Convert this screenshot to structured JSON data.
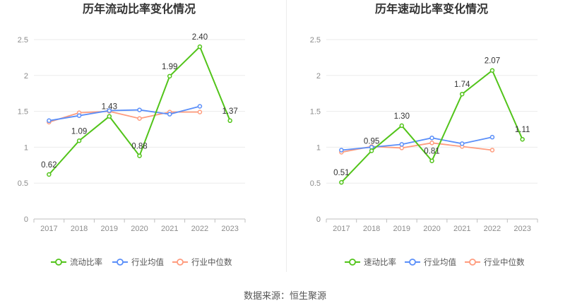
{
  "footer": "数据来源：恒生聚源",
  "chart_data": [
    {
      "type": "line",
      "title": "历年流动比率变化情况",
      "xlabel": "",
      "ylabel": "",
      "ylim": [
        0,
        2.5
      ],
      "yticks": [
        "0",
        "0.5",
        "1",
        "1.5",
        "2",
        "2.5"
      ],
      "categories": [
        "2017",
        "2018",
        "2019",
        "2020",
        "2021",
        "2022",
        "2023"
      ],
      "grid": true,
      "legend": "bottom",
      "series": [
        {
          "name": "流动比率",
          "color": "#52c41a",
          "values": [
            0.62,
            1.09,
            1.43,
            0.88,
            1.99,
            2.4,
            1.37
          ],
          "labels": [
            "0.62",
            "1.09",
            "1.43",
            "0.88",
            "1.99",
            "2.40",
            "1.37"
          ]
        },
        {
          "name": "行业均值",
          "color": "#5b8ff9",
          "values": [
            1.37,
            1.44,
            1.51,
            1.52,
            1.46,
            1.57,
            null
          ]
        },
        {
          "name": "行业中位数",
          "color": "#ff9c7e",
          "values": [
            1.35,
            1.48,
            1.5,
            1.4,
            1.49,
            1.49,
            null
          ]
        }
      ]
    },
    {
      "type": "line",
      "title": "历年速动比率变化情况",
      "xlabel": "",
      "ylabel": "",
      "ylim": [
        0,
        2.5
      ],
      "yticks": [
        "0",
        "0.5",
        "1",
        "1.5",
        "2",
        "2.5"
      ],
      "categories": [
        "2017",
        "2018",
        "2019",
        "2020",
        "2021",
        "2022",
        "2023"
      ],
      "grid": true,
      "legend": "bottom",
      "series": [
        {
          "name": "速动比率",
          "color": "#52c41a",
          "values": [
            0.51,
            0.95,
            1.3,
            0.81,
            1.74,
            2.07,
            1.11
          ],
          "labels": [
            "0.51",
            "0.95",
            "1.30",
            "0.81",
            "1.74",
            "2.07",
            "1.11"
          ]
        },
        {
          "name": "行业均值",
          "color": "#5b8ff9",
          "values": [
            0.96,
            1.0,
            1.04,
            1.13,
            1.05,
            1.14,
            null
          ]
        },
        {
          "name": "行业中位数",
          "color": "#ff9c7e",
          "values": [
            0.93,
            1.01,
            0.99,
            1.06,
            1.01,
            0.96,
            null
          ]
        }
      ]
    }
  ]
}
